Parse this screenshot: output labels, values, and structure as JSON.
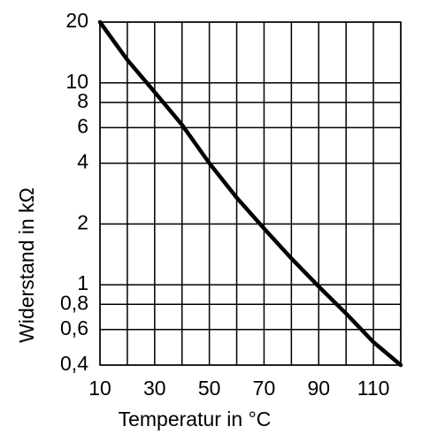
{
  "chart_data": {
    "type": "line",
    "x_label": "Temperatur in °C",
    "y_label": "Widerstand in kΩ",
    "x": [
      10,
      20,
      30,
      40,
      50,
      60,
      70,
      80,
      90,
      100,
      110,
      120
    ],
    "series": [
      {
        "name": "Widerstand",
        "color": "#000000",
        "values": [
          20,
          13,
          9,
          6.2,
          4,
          2.7,
          1.9,
          1.35,
          0.98,
          0.72,
          0.52,
          0.4
        ]
      }
    ],
    "xlim": [
      10,
      120
    ],
    "xticks": [
      10,
      30,
      50,
      70,
      90,
      110
    ],
    "x_minor_grid": [
      20,
      40,
      60,
      80,
      100,
      120
    ],
    "ylim": [
      0.4,
      20
    ],
    "y_log": true,
    "yticks": [
      {
        "value": 0.4,
        "label": "0,4"
      },
      {
        "value": 0.6,
        "label": "0,6"
      },
      {
        "value": 0.8,
        "label": "0,8"
      },
      1,
      2,
      4,
      6,
      8,
      10,
      20
    ],
    "grid": true
  }
}
